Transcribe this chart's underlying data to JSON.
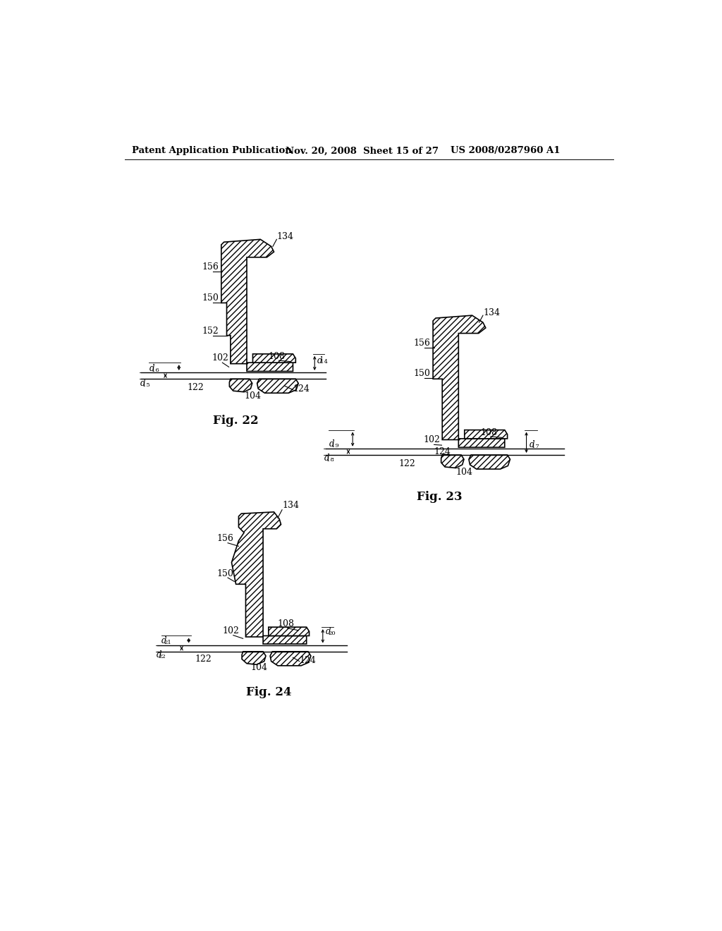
{
  "header_left": "Patent Application Publication",
  "header_mid": "Nov. 20, 2008  Sheet 15 of 27",
  "header_right": "US 2008/0287960 A1",
  "fig22_caption": "Fig. 22",
  "fig23_caption": "Fig. 23",
  "fig24_caption": "Fig. 24",
  "bg_color": "#ffffff",
  "line_color": "#000000",
  "hatch_pattern": "////"
}
